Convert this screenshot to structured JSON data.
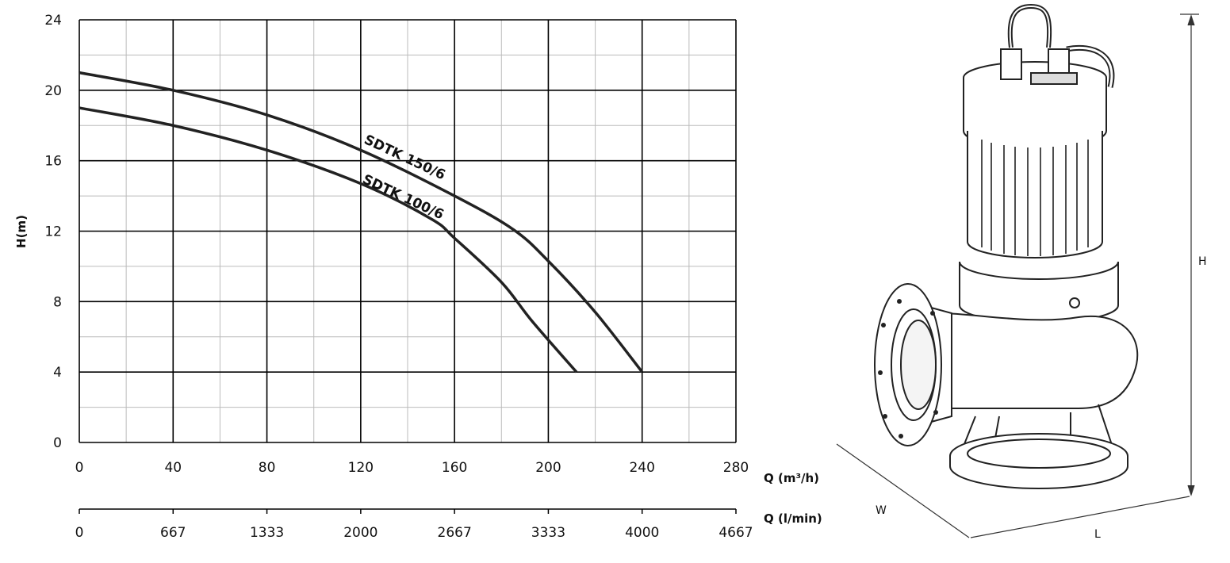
{
  "chart_data": {
    "type": "line",
    "ylabel": "H(m)",
    "xlabel": "Q (m³/h)",
    "x2label": "Q (l/min)",
    "xlim": [
      0,
      280
    ],
    "ylim": [
      0,
      24
    ],
    "x_ticks": [
      "0",
      "40",
      "80",
      "120",
      "160",
      "200",
      "240",
      "280"
    ],
    "x2_ticks": [
      "0",
      "667",
      "1333",
      "2000",
      "2667",
      "3333",
      "4000",
      "4667"
    ],
    "y_ticks": [
      "0",
      "4",
      "8",
      "12",
      "16",
      "20",
      "24"
    ],
    "grid": true,
    "series": [
      {
        "name": "SDTK 150/6",
        "label_rotation": 25,
        "points": [
          [
            0,
            21.0
          ],
          [
            40,
            20.0
          ],
          [
            80,
            18.6
          ],
          [
            120,
            16.6
          ],
          [
            160,
            14.0
          ],
          [
            185,
            12.1
          ],
          [
            200,
            10.3
          ],
          [
            220,
            7.4
          ],
          [
            240,
            4.0
          ]
        ]
      },
      {
        "name": "SDTK 100/6",
        "label_rotation": 25,
        "points": [
          [
            0,
            19.0
          ],
          [
            40,
            18.0
          ],
          [
            80,
            16.6
          ],
          [
            120,
            14.7
          ],
          [
            150,
            12.7
          ],
          [
            160,
            11.6
          ],
          [
            180,
            9.1
          ],
          [
            193,
            6.9
          ],
          [
            212,
            4.0
          ]
        ]
      }
    ]
  },
  "pump": {
    "height_label": "H",
    "width_label": "W",
    "length_label": "L"
  }
}
